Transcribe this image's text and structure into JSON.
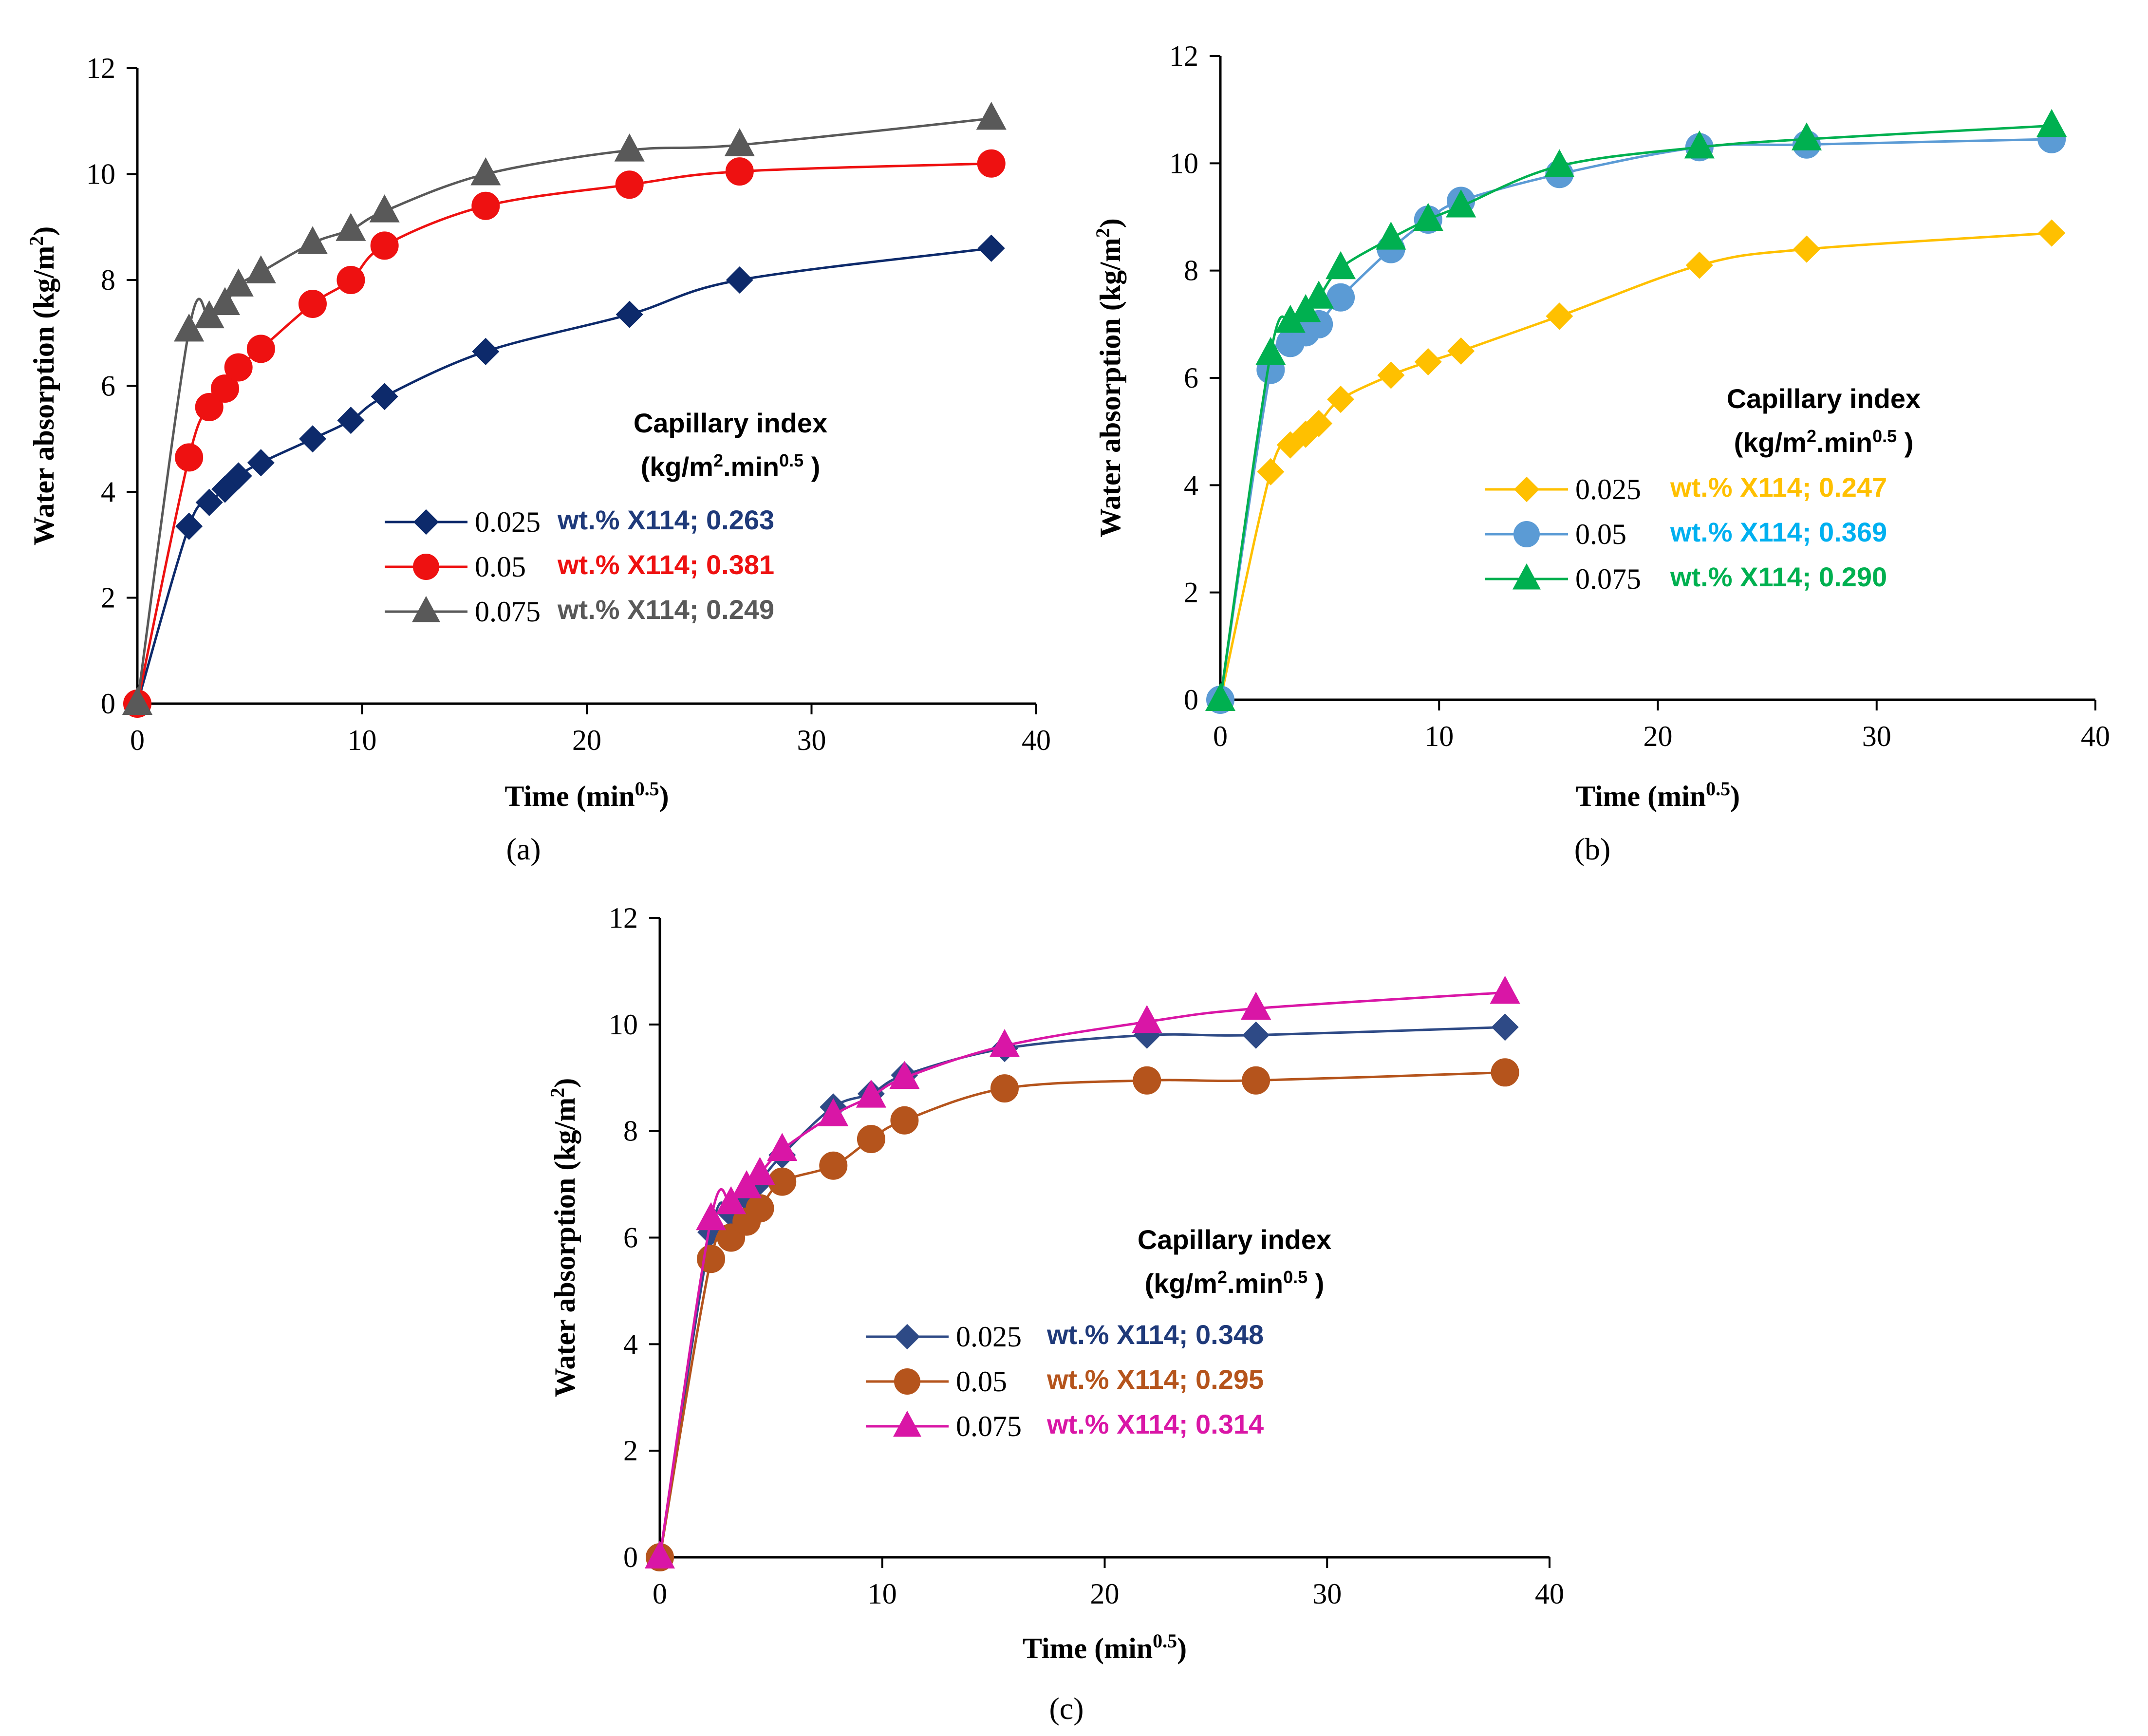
{
  "chart_data": [
    {
      "type": "line",
      "panel_label": "(a)",
      "xlabel": "Time (min",
      "xlabel_sup": "0.5",
      "xlabel_close": ")",
      "ylabel": "Water absorption (kg/m",
      "ylabel_sup": "2",
      "ylabel_close": ")",
      "xlim": [
        0,
        40
      ],
      "ylim": [
        0,
        12
      ],
      "xticks": [
        0,
        10,
        20,
        30,
        40
      ],
      "yticks": [
        0,
        2,
        4,
        6,
        8,
        10,
        12
      ],
      "capillary_title": "Capillary index",
      "capillary_unit": "(kg/m",
      "capillary_unit_sup1": "2",
      "capillary_unit_mid": ".min",
      "capillary_unit_sup2": "0.5",
      "capillary_unit_close": " )",
      "series": [
        {
          "name": "0.025",
          "marker": "diamond",
          "color": "#0d2a6b",
          "text_color": "#1f3a7a",
          "index_text": "wt.% X114; 0.263",
          "x": [
            0,
            2.3,
            3.2,
            3.9,
            4.5,
            5.5,
            7.8,
            9.5,
            11,
            15.5,
            21.9,
            26.8,
            38
          ],
          "values": [
            0,
            3.35,
            3.8,
            4.05,
            4.3,
            4.55,
            5.0,
            5.35,
            5.8,
            6.65,
            7.35,
            8.0,
            8.6
          ]
        },
        {
          "name": "0.05",
          "marker": "circle",
          "color": "#ee1111",
          "text_color": "#ee1111",
          "index_text": "wt.% X114; 0.381",
          "x": [
            0,
            2.3,
            3.2,
            3.9,
            4.5,
            5.5,
            7.8,
            9.5,
            11,
            15.5,
            21.9,
            26.8,
            38
          ],
          "values": [
            0,
            4.65,
            5.6,
            5.95,
            6.35,
            6.7,
            7.55,
            8.0,
            8.65,
            9.4,
            9.8,
            10.05,
            10.2
          ]
        },
        {
          "name": "0.075",
          "marker": "triangle",
          "color": "#595959",
          "text_color": "#595959",
          "index_text": "wt.% X114; 0.249",
          "x": [
            0,
            2.3,
            3.2,
            3.9,
            4.5,
            5.5,
            7.8,
            9.5,
            11,
            15.5,
            21.9,
            26.8,
            38
          ],
          "values": [
            0,
            7.05,
            7.3,
            7.55,
            7.9,
            8.15,
            8.7,
            8.95,
            9.3,
            10.0,
            10.45,
            10.55,
            11.05
          ]
        }
      ]
    },
    {
      "type": "line",
      "panel_label": "(b)",
      "xlabel": "Time (min",
      "xlabel_sup": "0.5",
      "xlabel_close": ")",
      "ylabel": "Water absorption (kg/m",
      "ylabel_sup": "2",
      "ylabel_close": ")",
      "xlim": [
        0,
        40
      ],
      "ylim": [
        0,
        12
      ],
      "xticks": [
        0,
        10,
        20,
        30,
        40
      ],
      "yticks": [
        0,
        2,
        4,
        6,
        8,
        10,
        12
      ],
      "capillary_title": "Capillary index",
      "capillary_unit": "(kg/m",
      "capillary_unit_sup1": "2",
      "capillary_unit_mid": ".min",
      "capillary_unit_sup2": "0.5",
      "capillary_unit_close": " )",
      "series": [
        {
          "name": "0.025",
          "marker": "diamond",
          "color": "#ffc000",
          "text_color": "#ffc000",
          "index_text": "wt.% X114; 0.247",
          "x": [
            0,
            2.3,
            3.2,
            3.9,
            4.5,
            5.5,
            7.8,
            9.5,
            11,
            15.5,
            21.9,
            26.8,
            38
          ],
          "values": [
            0,
            4.25,
            4.75,
            4.95,
            5.15,
            5.6,
            6.05,
            6.3,
            6.5,
            7.15,
            8.1,
            8.4,
            8.7
          ]
        },
        {
          "name": "0.05",
          "marker": "circle",
          "color": "#5b9bd5",
          "text_color": "#00b0f0",
          "index_text": "wt.% X114; 0.369",
          "x": [
            0,
            2.3,
            3.2,
            3.9,
            4.5,
            5.5,
            7.8,
            9.5,
            11,
            15.5,
            21.9,
            26.8,
            38
          ],
          "values": [
            0,
            6.15,
            6.65,
            6.85,
            7.0,
            7.5,
            8.4,
            8.95,
            9.3,
            9.8,
            10.3,
            10.35,
            10.45
          ]
        },
        {
          "name": "0.075",
          "marker": "triangle",
          "color": "#00b050",
          "text_color": "#00b050",
          "index_text": "wt.% X114; 0.290",
          "x": [
            0,
            2.3,
            3.2,
            3.9,
            4.5,
            5.5,
            7.8,
            9.5,
            11,
            15.5,
            21.9,
            26.8,
            38
          ],
          "values": [
            0,
            6.45,
            7.05,
            7.25,
            7.5,
            8.05,
            8.6,
            8.95,
            9.2,
            9.95,
            10.3,
            10.45,
            10.7
          ]
        }
      ]
    },
    {
      "type": "line",
      "panel_label": "(c)",
      "xlabel": "Time (min",
      "xlabel_sup": "0.5",
      "xlabel_close": ")",
      "ylabel": "Water absorption (kg/m",
      "ylabel_sup": "2",
      "ylabel_close": ")",
      "xlim": [
        0,
        40
      ],
      "ylim": [
        0,
        12
      ],
      "xticks": [
        0,
        10,
        20,
        30,
        40
      ],
      "yticks": [
        0,
        2,
        4,
        6,
        8,
        10,
        12
      ],
      "capillary_title": "Capillary index",
      "capillary_unit": "(kg/m",
      "capillary_unit_sup1": "2",
      "capillary_unit_mid": ".min",
      "capillary_unit_sup2": "0.5",
      "capillary_unit_close": " )",
      "series": [
        {
          "name": "0.025",
          "marker": "diamond",
          "color": "#2e4a86",
          "text_color": "#1f3a7a",
          "index_text": "wt.% X114; 0.348",
          "x": [
            0,
            2.3,
            3.2,
            3.9,
            4.5,
            5.5,
            7.8,
            9.5,
            11,
            15.5,
            21.9,
            26.8,
            38
          ],
          "values": [
            0,
            6.1,
            6.45,
            6.75,
            7.05,
            7.55,
            8.45,
            8.7,
            9.05,
            9.55,
            9.8,
            9.8,
            9.95
          ]
        },
        {
          "name": "0.05",
          "marker": "circle",
          "color": "#b5541c",
          "text_color": "#b5541c",
          "index_text": "wt.% X114; 0.295",
          "x": [
            0,
            2.3,
            3.2,
            3.9,
            4.5,
            5.5,
            7.8,
            9.5,
            11,
            15.5,
            21.9,
            26.8,
            38
          ],
          "values": [
            0,
            5.6,
            6.0,
            6.3,
            6.55,
            7.05,
            7.35,
            7.85,
            8.2,
            8.8,
            8.95,
            8.95,
            9.1
          ]
        },
        {
          "name": "0.075",
          "marker": "triangle",
          "color": "#d916a6",
          "text_color": "#d916a6",
          "index_text": "wt.% X114; 0.314",
          "x": [
            0,
            2.3,
            3.2,
            3.9,
            4.5,
            5.5,
            7.8,
            9.5,
            11,
            15.5,
            21.9,
            26.8,
            38
          ],
          "values": [
            0,
            6.35,
            6.65,
            6.95,
            7.2,
            7.65,
            8.3,
            8.65,
            9.0,
            9.6,
            10.05,
            10.3,
            10.6
          ]
        }
      ]
    }
  ]
}
